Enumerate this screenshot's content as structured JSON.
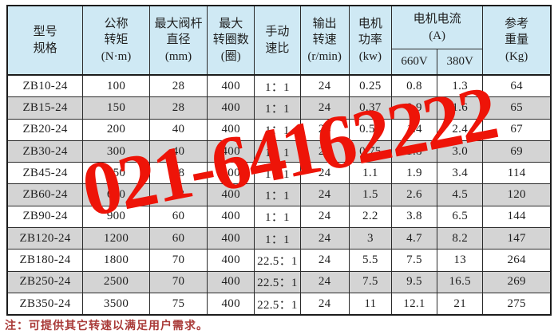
{
  "page": {
    "note": "注：可提供其它转速以满足用户需求。",
    "watermark_phone": "021-64162222"
  },
  "colors": {
    "header_bg": "#cfe9f4",
    "row_alt_gray": "#d4d4d4",
    "watermark_red": "#ee1408",
    "note_red": "#a93a38"
  },
  "table": {
    "headers": {
      "model": "型号\n规格",
      "torque": "公称\n转矩\n(N·m)",
      "stem": "最大阀杆\n直径\n(mm)",
      "turns": "最大\n转圈数\n(圈)",
      "ratio": "手动\n速比",
      "speed": "输出\n转速\n(r/min)",
      "power": "电机\n功率\n(kw)",
      "current": "电机电流\n(A)",
      "v660": "660V",
      "v380": "380V",
      "weight": "参考\n重量\n(Kg)"
    },
    "rows": [
      [
        "ZB10-24",
        "100",
        "28",
        "400",
        "1：1",
        "24",
        "0.25",
        "0.8",
        "1.3",
        "64"
      ],
      [
        "ZB15-24",
        "150",
        "28",
        "400",
        "1：1",
        "24",
        "0.37",
        "0.9",
        "1.6",
        "65"
      ],
      [
        "ZB20-24",
        "200",
        "40",
        "400",
        "1：1",
        "24",
        "0.55",
        "1.4",
        "2.4",
        "67"
      ],
      [
        "ZB30-24",
        "300",
        "40",
        "400",
        "1：1",
        "24",
        "0.75",
        "1.8",
        "3.0",
        "69"
      ],
      [
        "ZB45-24",
        "450",
        "48",
        "400",
        "1：1",
        "24",
        "1.1",
        "1.9",
        "3.4",
        "114"
      ],
      [
        "ZB60-24",
        "600",
        "48",
        "400",
        "1：1",
        "24",
        "1.5",
        "2.6",
        "4.5",
        "120"
      ],
      [
        "ZB90-24",
        "900",
        "60",
        "400",
        "1：1",
        "24",
        "2.2",
        "3.8",
        "6.5",
        "144"
      ],
      [
        "ZB120-24",
        "1200",
        "60",
        "400",
        "1：1",
        "24",
        "3",
        "4.7",
        "8.2",
        "147"
      ],
      [
        "ZB180-24",
        "1800",
        "70",
        "400",
        "22.5：1",
        "24",
        "5.5",
        "7.5",
        "13",
        "264"
      ],
      [
        "ZB250-24",
        "2500",
        "70",
        "400",
        "22.5：1",
        "24",
        "7.5",
        "9.5",
        "16.5",
        "269"
      ],
      [
        "ZB350-24",
        "3500",
        "75",
        "400",
        "22.5：1",
        "24",
        "11",
        "12.1",
        "21",
        "275"
      ]
    ]
  }
}
